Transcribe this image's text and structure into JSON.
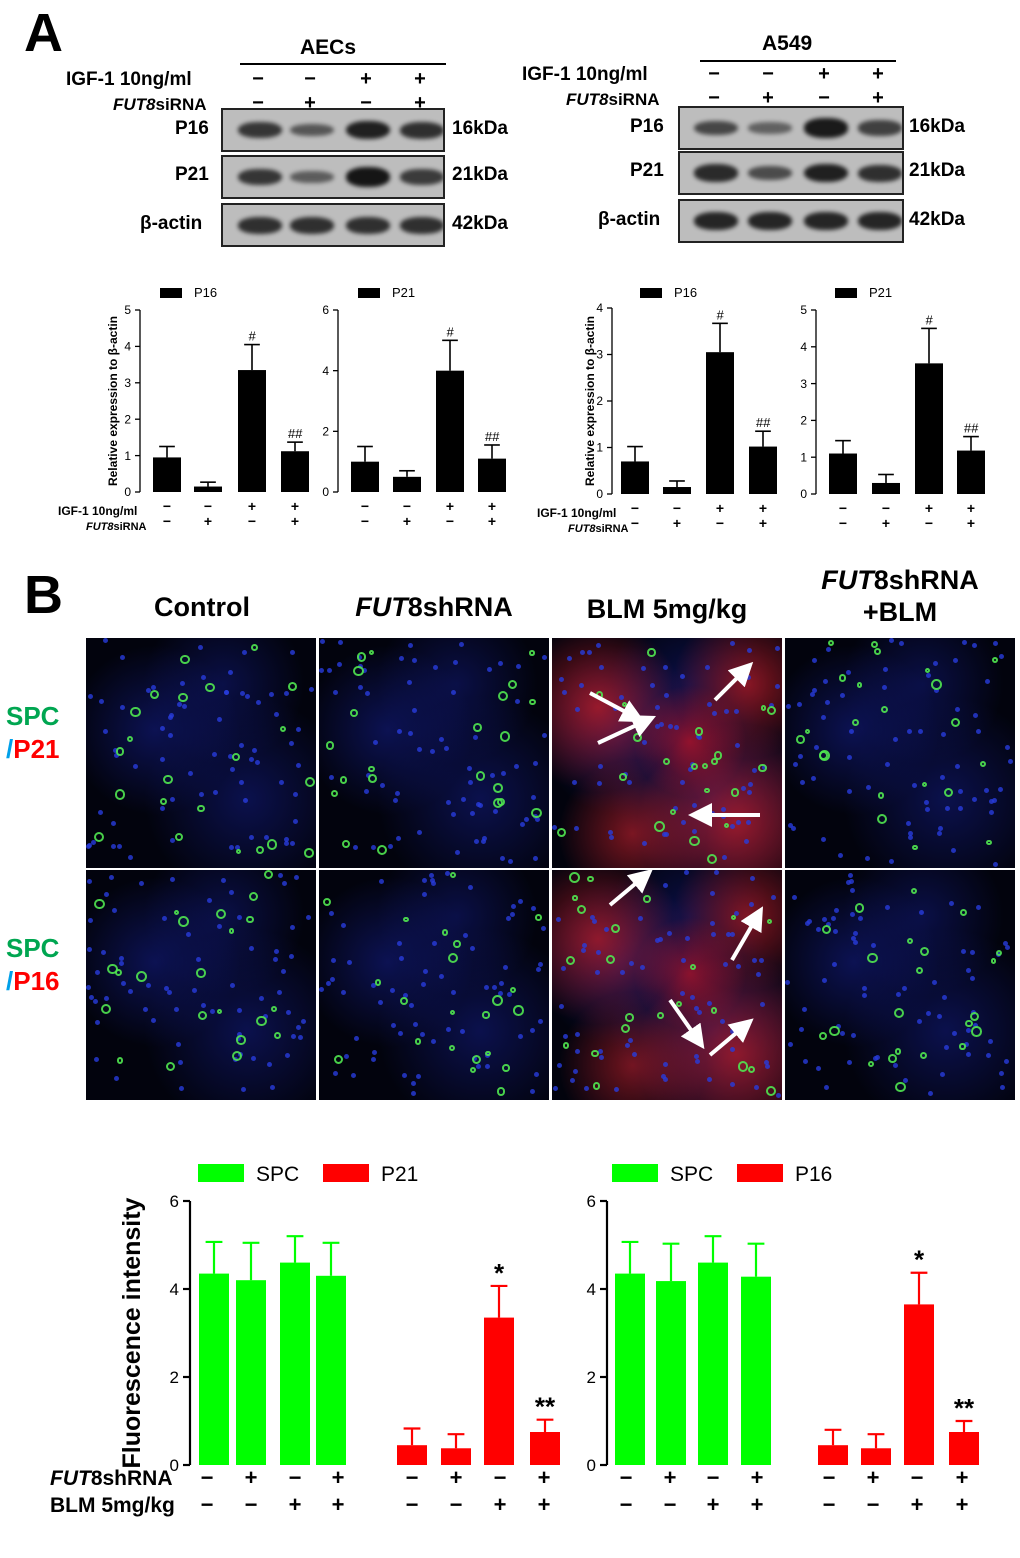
{
  "panelA": {
    "letter": "A",
    "left": {
      "cell": "AECs",
      "igf_label": "IGF-1 10ng/ml",
      "fut8_label_ital": "FUT8",
      "fut8_label_rest": "siRNA",
      "igf_signs": [
        "−",
        "−",
        "+",
        "+"
      ],
      "fut8_signs": [
        "−",
        "+",
        "−",
        "+"
      ],
      "blots": [
        {
          "name": "P16",
          "size": "16kDa",
          "bands": [
            0.7,
            0.4,
            0.9,
            0.75
          ]
        },
        {
          "name": "P21",
          "size": "21kDa",
          "bands": [
            0.7,
            0.35,
            1.0,
            0.65
          ]
        },
        {
          "name": "β-actin",
          "size": "42kDa",
          "bands": [
            0.75,
            0.75,
            0.75,
            0.75
          ]
        }
      ]
    },
    "right": {
      "cell": "A549",
      "igf_label": "IGF-1 10ng/ml",
      "fut8_label_ital": "FUT8",
      "fut8_label_rest": "siRNA",
      "igf_signs": [
        "−",
        "−",
        "+",
        "+"
      ],
      "fut8_signs": [
        "−",
        "+",
        "−",
        "+"
      ],
      "blots": [
        {
          "name": "P16",
          "size": "16kDa",
          "bands": [
            0.55,
            0.3,
            0.95,
            0.6
          ]
        },
        {
          "name": "P21",
          "size": "21kDa",
          "bands": [
            0.8,
            0.5,
            0.9,
            0.75
          ]
        },
        {
          "name": "β-actin",
          "size": "42kDa",
          "bands": [
            0.85,
            0.85,
            0.85,
            0.85
          ]
        }
      ]
    },
    "bar_row_labels": {
      "igf": "IGF-1 10ng/ml",
      "fut8_ital": "FUT8",
      "fut8_rest": "siRNA"
    }
  },
  "panelB": {
    "letter": "B",
    "columns": [
      {
        "ital": "",
        "text": "Control"
      },
      {
        "ital": "FUT",
        "text": "8shRNA"
      },
      {
        "ital": "",
        "text": "BLM 5mg/kg"
      },
      {
        "ital": "FUT",
        "text": "8shRNA",
        "line2": "+BLM"
      }
    ],
    "rows": [
      {
        "green": "SPC",
        "red": "P21"
      },
      {
        "green": "SPC",
        "red": "P16"
      }
    ],
    "row_label_slash": "/",
    "bar_row_labels": {
      "shrna_ital": "FUT",
      "shrna_rest": "8shRNA",
      "blm": "BLM 5mg/kg"
    }
  },
  "colors": {
    "green": "#00ff00",
    "red": "#ff0000",
    "label_green": "#00a651",
    "label_blue": "#00a0e9",
    "label_red": "#ff0000",
    "black": "#000000"
  },
  "chart_data": [
    {
      "type": "bar",
      "id": "aecs-p16",
      "ylabel": "Relative expression to β-actin",
      "legend": [
        "P16"
      ],
      "ylim": [
        0,
        5
      ],
      "yticks": [
        0,
        1,
        2,
        3,
        4,
        5
      ],
      "values": [
        0.95,
        0.15,
        3.35,
        1.12
      ],
      "errors": [
        0.3,
        0.12,
        0.7,
        0.25
      ],
      "annotations": [
        "",
        "",
        "#",
        "##"
      ],
      "igf_signs": [
        "−",
        "−",
        "+",
        "+"
      ],
      "fut8_signs": [
        "−",
        "+",
        "−",
        "+"
      ]
    },
    {
      "type": "bar",
      "id": "aecs-p21",
      "legend": [
        "P21"
      ],
      "ylim": [
        0,
        6
      ],
      "yticks": [
        0,
        2,
        4,
        6
      ],
      "values": [
        1.0,
        0.5,
        4.0,
        1.1
      ],
      "errors": [
        0.5,
        0.2,
        1.0,
        0.45
      ],
      "annotations": [
        "",
        "",
        "#",
        "##"
      ],
      "igf_signs": [
        "−",
        "−",
        "+",
        "+"
      ],
      "fut8_signs": [
        "−",
        "+",
        "−",
        "+"
      ]
    },
    {
      "type": "bar",
      "id": "a549-p16",
      "ylabel": "Relative expression to β-actin",
      "legend": [
        "P16"
      ],
      "ylim": [
        0,
        4
      ],
      "yticks": [
        0,
        1,
        2,
        3,
        4
      ],
      "values": [
        0.7,
        0.15,
        3.05,
        1.02
      ],
      "errors": [
        0.32,
        0.13,
        0.62,
        0.33
      ],
      "annotations": [
        "",
        "",
        "#",
        "##"
      ],
      "igf_signs": [
        "−",
        "−",
        "+",
        "+"
      ],
      "fut8_signs": [
        "−",
        "+",
        "−",
        "+"
      ]
    },
    {
      "type": "bar",
      "id": "a549-p21",
      "legend": [
        "P21"
      ],
      "ylim": [
        0,
        5
      ],
      "yticks": [
        0,
        1,
        2,
        3,
        4,
        5
      ],
      "values": [
        1.1,
        0.3,
        3.55,
        1.18
      ],
      "errors": [
        0.35,
        0.23,
        0.95,
        0.38
      ],
      "annotations": [
        "",
        "",
        "#",
        "##"
      ],
      "igf_signs": [
        "−",
        "−",
        "+",
        "+"
      ],
      "fut8_signs": [
        "−",
        "+",
        "−",
        "+"
      ]
    },
    {
      "type": "bar",
      "id": "fluor-p21",
      "ylabel": "Fluorescence intensity",
      "ylim": [
        0,
        6
      ],
      "yticks": [
        0,
        2,
        4,
        6
      ],
      "series": [
        {
          "name": "SPC",
          "color": "#00ff00",
          "values": [
            4.35,
            4.2,
            4.6,
            4.3
          ],
          "errors": [
            0.72,
            0.85,
            0.6,
            0.75
          ],
          "annotations": [
            "",
            "",
            "",
            ""
          ]
        },
        {
          "name": "P21",
          "color": "#ff0000",
          "values": [
            0.45,
            0.38,
            3.35,
            0.75
          ],
          "errors": [
            0.38,
            0.32,
            0.72,
            0.28
          ],
          "annotations": [
            "",
            "",
            "*",
            "**"
          ]
        }
      ],
      "shrna_signs": [
        "−",
        "+",
        "−",
        "+",
        "−",
        "+",
        "−",
        "+"
      ],
      "blm_signs": [
        "−",
        "−",
        "+",
        "+",
        "−",
        "−",
        "+",
        "+"
      ]
    },
    {
      "type": "bar",
      "id": "fluor-p16",
      "ylim": [
        0,
        6
      ],
      "yticks": [
        0,
        2,
        4,
        6
      ],
      "series": [
        {
          "name": "SPC",
          "color": "#00ff00",
          "values": [
            4.35,
            4.18,
            4.6,
            4.28
          ],
          "errors": [
            0.72,
            0.85,
            0.6,
            0.75
          ],
          "annotations": [
            "",
            "",
            "",
            ""
          ]
        },
        {
          "name": "P16",
          "color": "#ff0000",
          "values": [
            0.45,
            0.38,
            3.65,
            0.75
          ],
          "errors": [
            0.35,
            0.32,
            0.72,
            0.25
          ],
          "annotations": [
            "",
            "",
            "*",
            "**"
          ]
        }
      ],
      "shrna_signs": [
        "−",
        "+",
        "−",
        "+",
        "−",
        "+",
        "−",
        "+"
      ],
      "blm_signs": [
        "−",
        "−",
        "+",
        "+",
        "−",
        "−",
        "+",
        "+"
      ]
    }
  ]
}
